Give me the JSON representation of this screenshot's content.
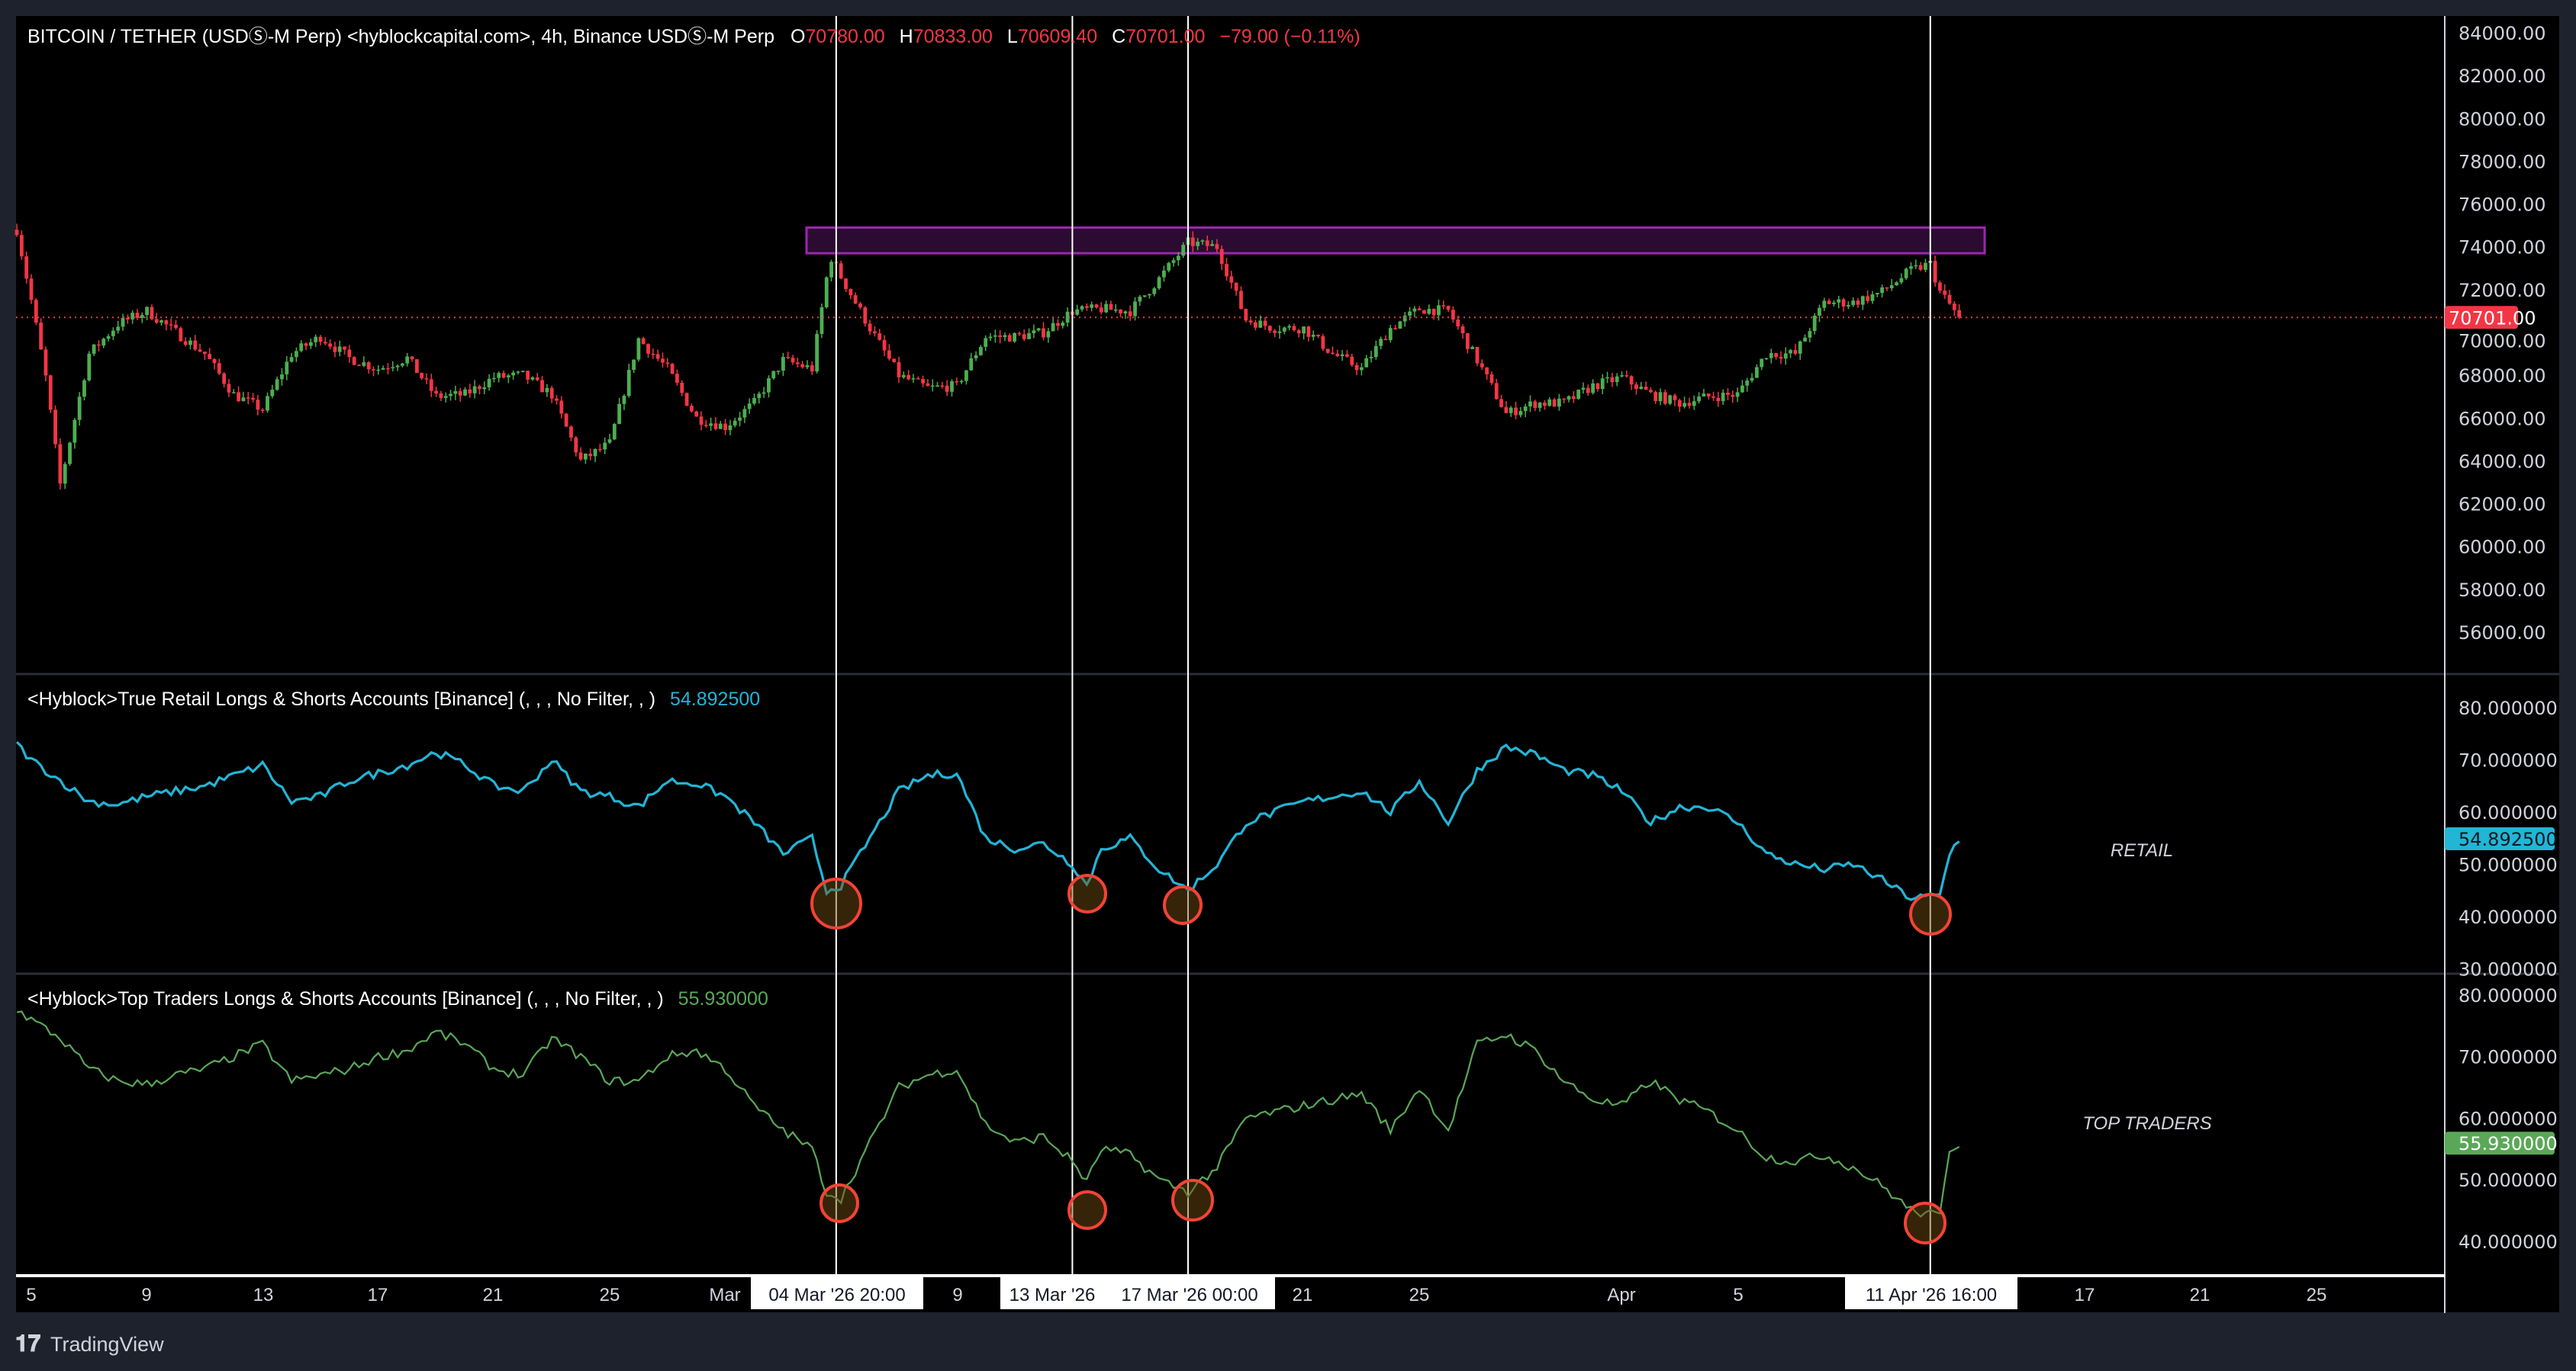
{
  "header": {
    "symbol": "BITCOIN / TETHER (USDⓈ-M Perp) <hyblockcapital.com>, 4h, Binance USDⓈ-M Perp",
    "o_label": "O",
    "o_value": "70780.00",
    "h_label": "H",
    "h_value": "70833.00",
    "l_label": "L",
    "l_value": "70609.40",
    "c_label": "C",
    "c_value": "70701.00",
    "change": "−79.00 (−0.11%)"
  },
  "price_axis": {
    "ticks": [
      "84000.00",
      "82000.00",
      "80000.00",
      "78000.00",
      "76000.00",
      "74000.00",
      "72000.00",
      "70000.00",
      "68000.00",
      "66000.00",
      "64000.00",
      "62000.00",
      "60000.00",
      "58000.00",
      "56000.00"
    ],
    "last_price": "70701.00"
  },
  "retail_pane": {
    "legend": "<Hyblock>True Retail Longs & Shorts Accounts [Binance] (, , , No Filter, , )",
    "value": "54.892500",
    "ticks": [
      "80.000000",
      "70.000000",
      "60.000000",
      "50.000000",
      "40.000000",
      "30.000000"
    ],
    "annotation": "RETAIL"
  },
  "top_pane": {
    "legend": "<Hyblock>Top Traders Longs & Shorts Accounts [Binance] (, , , No Filter, , )",
    "value": "55.930000",
    "ticks": [
      "80.000000",
      "70.000000",
      "60.000000",
      "50.000000",
      "40.000000"
    ],
    "annotation": "TOP TRADERS"
  },
  "time_axis": {
    "labels": [
      "5",
      "9",
      "13",
      "17",
      "21",
      "25",
      "Mar",
      "9",
      "21",
      "25",
      "Apr",
      "5",
      "17",
      "21",
      "25"
    ],
    "highlighted": [
      "04 Mar '26  20:00",
      "13 Mar '26",
      "17 Mar '26  00:00",
      "11 Apr '26  16:00"
    ]
  },
  "footer": {
    "brand": "TradingView"
  },
  "colors": {
    "up": "#4caf50",
    "down": "#f23645",
    "retail_line": "#22b5d6",
    "top_line": "#5aa857",
    "zone": "#9c27b0",
    "circle": "#f44336",
    "background": "#000000",
    "chrome": "#1e222d"
  },
  "chart_data": [
    {
      "type": "candlestick",
      "title": "BITCOIN / TETHER (USDⓈ-M Perp) <hyblockcapital.com>, 4h, Binance USDⓈ-M Perp",
      "ylim": [
        55000,
        85000
      ],
      "resistance_zone": [
        73700,
        74900
      ],
      "marked_times": [
        "2026-03-04 20:00",
        "2026-03-13 00:00",
        "2026-03-17 00:00",
        "2026-04-11 16:00"
      ],
      "close_series": [
        [
          "2026-02-04 12:00",
          74800
        ],
        [
          "2026-02-05 00:00",
          71500
        ],
        [
          "2026-02-05 12:00",
          67900
        ],
        [
          "2026-02-06 00:00",
          62900
        ],
        [
          "2026-02-07",
          69000
        ],
        [
          "2026-02-08",
          70400
        ],
        [
          "2026-02-09",
          71000
        ],
        [
          "2026-02-10",
          70000
        ],
        [
          "2026-02-11",
          69000
        ],
        [
          "2026-02-12",
          67100
        ],
        [
          "2026-02-13",
          66400
        ],
        [
          "2026-02-14",
          69000
        ],
        [
          "2026-02-15",
          69800
        ],
        [
          "2026-02-16",
          68800
        ],
        [
          "2026-02-17",
          68300
        ],
        [
          "2026-02-18",
          68800
        ],
        [
          "2026-02-19",
          67000
        ],
        [
          "2026-02-20",
          67100
        ],
        [
          "2026-02-21",
          67900
        ],
        [
          "2026-02-22",
          68000
        ],
        [
          "2026-02-23",
          67100
        ],
        [
          "2026-02-24",
          64000
        ],
        [
          "2026-02-25",
          64800
        ],
        [
          "2026-02-26",
          69700
        ],
        [
          "2026-02-27",
          68300
        ],
        [
          "2026-02-28",
          66000
        ],
        [
          "2026-03-01",
          65600
        ],
        [
          "2026-03-02",
          66700
        ],
        [
          "2026-03-03",
          68700
        ],
        [
          "2026-03-04 00:00",
          68300
        ],
        [
          "2026-03-04 15:00",
          73600
        ],
        [
          "2026-03-05",
          72600
        ],
        [
          "2026-03-06",
          70200
        ],
        [
          "2026-03-07",
          68000
        ],
        [
          "2026-03-08",
          67400
        ],
        [
          "2026-03-09",
          67500
        ],
        [
          "2026-03-10",
          69800
        ],
        [
          "2026-03-11",
          69800
        ],
        [
          "2026-03-12",
          70000
        ],
        [
          "2026-03-13",
          71000
        ],
        [
          "2026-03-14",
          71100
        ],
        [
          "2026-03-15",
          71000
        ],
        [
          "2026-03-16",
          72500
        ],
        [
          "2026-03-17",
          74200
        ],
        [
          "2026-03-18",
          74000
        ],
        [
          "2026-03-19",
          70600
        ],
        [
          "2026-03-20",
          70200
        ],
        [
          "2026-03-21",
          70200
        ],
        [
          "2026-03-22",
          69000
        ],
        [
          "2026-03-23",
          68300
        ],
        [
          "2026-03-24",
          70200
        ],
        [
          "2026-03-25",
          71100
        ],
        [
          "2026-03-26",
          71000
        ],
        [
          "2026-03-27",
          68700
        ],
        [
          "2026-03-28",
          66200
        ],
        [
          "2026-03-29",
          66700
        ],
        [
          "2026-03-30",
          66700
        ],
        [
          "2026-03-31",
          67500
        ],
        [
          "2026-04-01",
          67900
        ],
        [
          "2026-04-02",
          67100
        ],
        [
          "2026-04-03",
          66700
        ],
        [
          "2026-04-04",
          67000
        ],
        [
          "2026-04-05",
          67100
        ],
        [
          "2026-04-06",
          69000
        ],
        [
          "2026-04-07",
          69000
        ],
        [
          "2026-04-08",
          71400
        ],
        [
          "2026-04-09",
          71400
        ],
        [
          "2026-04-10",
          71900
        ],
        [
          "2026-04-11",
          72900
        ],
        [
          "2026-04-11 16:00",
          73200
        ],
        [
          "2026-04-12",
          71900
        ],
        [
          "2026-04-12 16:00",
          70701
        ]
      ]
    },
    {
      "type": "line",
      "name": "<Hyblock>True Retail Longs & Shorts Accounts [Binance]",
      "ylim": [
        30,
        82
      ],
      "series": [
        [
          "2026-02-04 12:00",
          73
        ],
        [
          "2026-02-05",
          70
        ],
        [
          "2026-02-06",
          66
        ],
        [
          "2026-02-07",
          62
        ],
        [
          "2026-02-08",
          61.5
        ],
        [
          "2026-02-09",
          63
        ],
        [
          "2026-02-10",
          64
        ],
        [
          "2026-02-11",
          65
        ],
        [
          "2026-02-12",
          67
        ],
        [
          "2026-02-13",
          69
        ],
        [
          "2026-02-14",
          62
        ],
        [
          "2026-02-15",
          63
        ],
        [
          "2026-02-16",
          66
        ],
        [
          "2026-02-17",
          67.5
        ],
        [
          "2026-02-18",
          69
        ],
        [
          "2026-02-19",
          71.5
        ],
        [
          "2026-02-20",
          69
        ],
        [
          "2026-02-21",
          65
        ],
        [
          "2026-02-22",
          64
        ],
        [
          "2026-02-23",
          70
        ],
        [
          "2026-02-24",
          64
        ],
        [
          "2026-02-25",
          63
        ],
        [
          "2026-02-26",
          61
        ],
        [
          "2026-02-27",
          66
        ],
        [
          "2026-02-28",
          65.5
        ],
        [
          "2026-03-01",
          63
        ],
        [
          "2026-03-02",
          58
        ],
        [
          "2026-03-03",
          52
        ],
        [
          "2026-03-04",
          55
        ],
        [
          "2026-03-04 12:00",
          45
        ],
        [
          "2026-03-05",
          46
        ],
        [
          "2026-03-06",
          55
        ],
        [
          "2026-03-07",
          64
        ],
        [
          "2026-03-08",
          67
        ],
        [
          "2026-03-09",
          67.5
        ],
        [
          "2026-03-10",
          55
        ],
        [
          "2026-03-11",
          53
        ],
        [
          "2026-03-12",
          54
        ],
        [
          "2026-03-13",
          50
        ],
        [
          "2026-03-13 12:00",
          46
        ],
        [
          "2026-03-14",
          53
        ],
        [
          "2026-03-15",
          55
        ],
        [
          "2026-03-16",
          49
        ],
        [
          "2026-03-17",
          45
        ],
        [
          "2026-03-18",
          50
        ],
        [
          "2026-03-19",
          58
        ],
        [
          "2026-03-20",
          60
        ],
        [
          "2026-03-21",
          62
        ],
        [
          "2026-03-22",
          63
        ],
        [
          "2026-03-23",
          64
        ],
        [
          "2026-03-24",
          60
        ],
        [
          "2026-03-25",
          66
        ],
        [
          "2026-03-26",
          58
        ],
        [
          "2026-03-27",
          68
        ],
        [
          "2026-03-28",
          72.5
        ],
        [
          "2026-03-29",
          71
        ],
        [
          "2026-03-30",
          68
        ],
        [
          "2026-03-31",
          67
        ],
        [
          "2026-04-01",
          64
        ],
        [
          "2026-04-02",
          58
        ],
        [
          "2026-04-03",
          61
        ],
        [
          "2026-04-04",
          61
        ],
        [
          "2026-04-05",
          58
        ],
        [
          "2026-04-06",
          52
        ],
        [
          "2026-04-07",
          50
        ],
        [
          "2026-04-08",
          49
        ],
        [
          "2026-04-09",
          50
        ],
        [
          "2026-04-10",
          47
        ],
        [
          "2026-04-11",
          43.5
        ],
        [
          "2026-04-12",
          44
        ],
        [
          "2026-04-12 08:00",
          52
        ],
        [
          "2026-04-12 16:00",
          54.8925
        ]
      ]
    },
    {
      "type": "line",
      "name": "<Hyblock>Top Traders Longs & Shorts Accounts [Binance]",
      "ylim": [
        36,
        82
      ],
      "series": [
        [
          "2026-02-04 12:00",
          77.6
        ],
        [
          "2026-02-05",
          76
        ],
        [
          "2026-02-06",
          73
        ],
        [
          "2026-02-07",
          68
        ],
        [
          "2026-02-08",
          66
        ],
        [
          "2026-02-09",
          65.5
        ],
        [
          "2026-02-10",
          67
        ],
        [
          "2026-02-11",
          68
        ],
        [
          "2026-02-12",
          70
        ],
        [
          "2026-02-13",
          72
        ],
        [
          "2026-02-14",
          66
        ],
        [
          "2026-02-15",
          67
        ],
        [
          "2026-02-16",
          68
        ],
        [
          "2026-02-17",
          70
        ],
        [
          "2026-02-18",
          71
        ],
        [
          "2026-02-19",
          74
        ],
        [
          "2026-02-20",
          72
        ],
        [
          "2026-02-21",
          68
        ],
        [
          "2026-02-22",
          67
        ],
        [
          "2026-02-23",
          73
        ],
        [
          "2026-02-24",
          70
        ],
        [
          "2026-02-25",
          66
        ],
        [
          "2026-02-26",
          66
        ],
        [
          "2026-02-27",
          70
        ],
        [
          "2026-02-28",
          71
        ],
        [
          "2026-03-01",
          68
        ],
        [
          "2026-03-02",
          62
        ],
        [
          "2026-03-03",
          58
        ],
        [
          "2026-03-04",
          55
        ],
        [
          "2026-03-04 12:00",
          48
        ],
        [
          "2026-03-05",
          47
        ],
        [
          "2026-03-06",
          56
        ],
        [
          "2026-03-07",
          65
        ],
        [
          "2026-03-08",
          67
        ],
        [
          "2026-03-09",
          68
        ],
        [
          "2026-03-10",
          59
        ],
        [
          "2026-03-11",
          56
        ],
        [
          "2026-03-12",
          57
        ],
        [
          "2026-03-13",
          53
        ],
        [
          "2026-03-13 12:00",
          49.6
        ],
        [
          "2026-03-14",
          55
        ],
        [
          "2026-03-15",
          54
        ],
        [
          "2026-03-16",
          50
        ],
        [
          "2026-03-17",
          48
        ],
        [
          "2026-03-18",
          52
        ],
        [
          "2026-03-19",
          60
        ],
        [
          "2026-03-20",
          61
        ],
        [
          "2026-03-21",
          62
        ],
        [
          "2026-03-22",
          63
        ],
        [
          "2026-03-23",
          64
        ],
        [
          "2026-03-24",
          58
        ],
        [
          "2026-03-25",
          65
        ],
        [
          "2026-03-26",
          58
        ],
        [
          "2026-03-27",
          72
        ],
        [
          "2026-03-28",
          73.6
        ],
        [
          "2026-03-29",
          71
        ],
        [
          "2026-03-30",
          66
        ],
        [
          "2026-03-31",
          63
        ],
        [
          "2026-04-01",
          62
        ],
        [
          "2026-04-02",
          66
        ],
        [
          "2026-04-03",
          63
        ],
        [
          "2026-04-04",
          61
        ],
        [
          "2026-04-05",
          58
        ],
        [
          "2026-04-06",
          53.6
        ],
        [
          "2026-04-07",
          53
        ],
        [
          "2026-04-08",
          54
        ],
        [
          "2026-04-09",
          52
        ],
        [
          "2026-04-10",
          49
        ],
        [
          "2026-04-11",
          45
        ],
        [
          "2026-04-12",
          44
        ],
        [
          "2026-04-12 08:00",
          55
        ],
        [
          "2026-04-12 16:00",
          55.93
        ]
      ]
    }
  ]
}
